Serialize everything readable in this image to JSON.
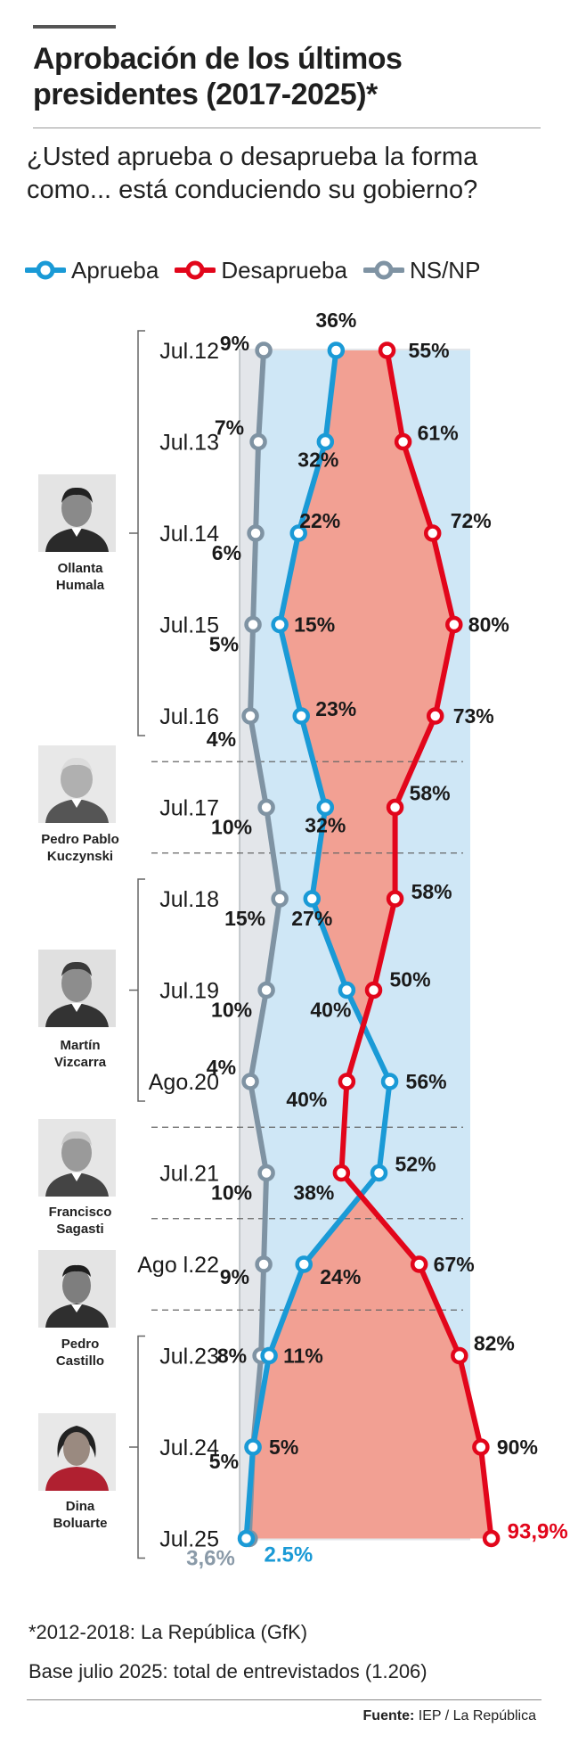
{
  "header": {
    "title": "Aprobación de los últimos presidentes (2017-2025)*",
    "subtitle": "¿Usted aprueba o desaprueba la forma como... está conduciendo su gobierno?"
  },
  "legend": [
    {
      "label": "Aprueba",
      "color": "#1a9ad6"
    },
    {
      "label": "Desaprueba",
      "color": "#e2061b"
    },
    {
      "label": "NS/NP",
      "color": "#7f93a3"
    }
  ],
  "presidents": [
    {
      "name_line1": "Ollanta",
      "name_line2": "Humala"
    },
    {
      "name_line1": "Pedro Pablo",
      "name_line2": "Kuczynski"
    },
    {
      "name_line1": "Martín",
      "name_line2": "Vizcarra"
    },
    {
      "name_line1": "Francisco",
      "name_line2": "Sagasti"
    },
    {
      "name_line1": "Pedro",
      "name_line2": "Castillo"
    },
    {
      "name_line1": "Dina",
      "name_line2": "Boluarte"
    }
  ],
  "chart_data": {
    "type": "line",
    "orientation": "vertical-time-axis",
    "categories": [
      "Jul.12",
      "Jul.13",
      "Jul.14",
      "Jul.15",
      "Jul.16",
      "Jul.17",
      "Jul.18",
      "Jul.19",
      "Ago.20",
      "Jul.21",
      "Ago l.22",
      "Jul.23",
      "Jul.24",
      "Jul.25"
    ],
    "series": [
      {
        "name": "Aprueba",
        "color": "#1a9ad6",
        "values": [
          36,
          32,
          22,
          15,
          23,
          32,
          27,
          40,
          56,
          52,
          24,
          11,
          5,
          2.5
        ],
        "labels": [
          "36%",
          "32%",
          "22%",
          "15%",
          "23%",
          "32%",
          "27%",
          "40%",
          "56%",
          "52%",
          "24%",
          "11%",
          "5%",
          "2.5%"
        ]
      },
      {
        "name": "Desaprueba",
        "color": "#e2061b",
        "values": [
          55,
          61,
          72,
          80,
          73,
          58,
          58,
          50,
          40,
          38,
          67,
          82,
          90,
          93.9
        ],
        "labels": [
          "55%",
          "61%",
          "72%",
          "80%",
          "73%",
          "58%",
          "58%",
          "50%",
          "40%",
          "38%",
          "67%",
          "82%",
          "90%",
          "93,9%"
        ]
      },
      {
        "name": "NS/NP",
        "color": "#7f93a3",
        "values": [
          9,
          7,
          6,
          5,
          4,
          10,
          15,
          10,
          4,
          10,
          9,
          8,
          5,
          3.6
        ],
        "labels": [
          "9%",
          "7%",
          "6%",
          "5%",
          "4%",
          "10%",
          "15%",
          "10%",
          "4%",
          "10%",
          "9%",
          "8%",
          "5%",
          "3,6%"
        ]
      }
    ],
    "xlim": [
      0,
      100
    ],
    "title": "Aprobación de los últimos presidentes (2017-2025)*"
  },
  "footnotes": {
    "note1": "*2012-2018: La República (GfK)",
    "note2": "Base julio 2025: total de entrevistados (1.206)",
    "source_label": "Fuente:",
    "source_text": " IEP / La República"
  }
}
